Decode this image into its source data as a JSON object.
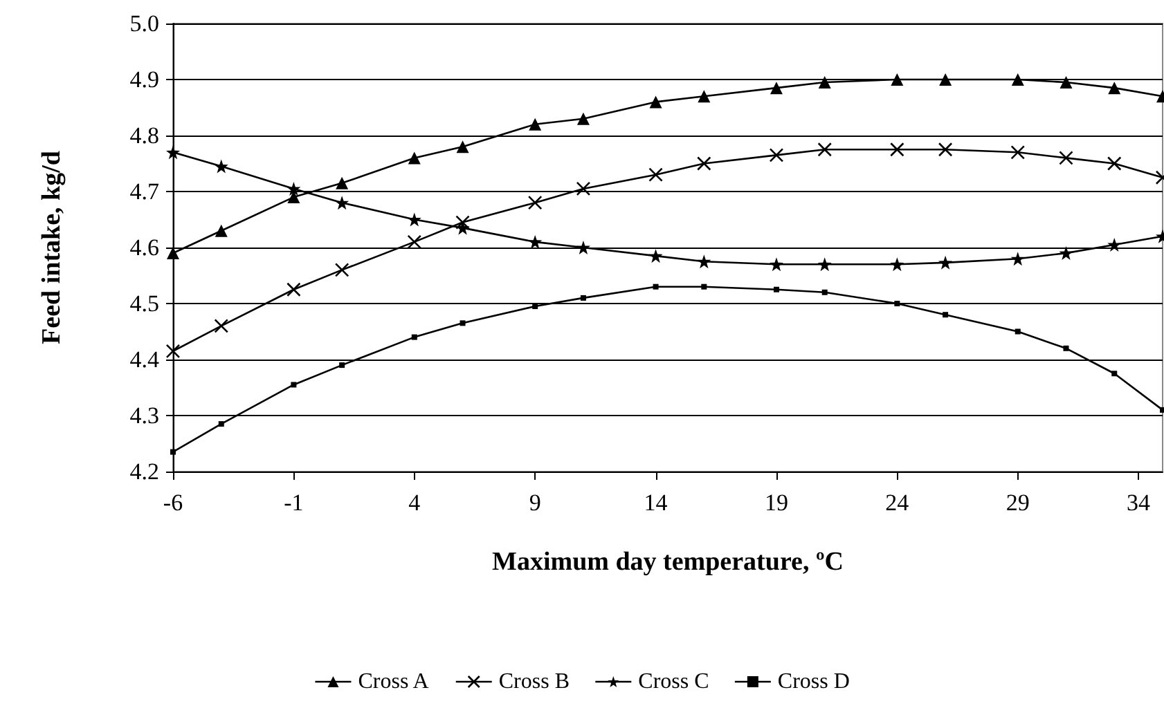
{
  "chart_data": {
    "type": "line",
    "xlabel": "Maximum day temperature, ºC",
    "ylabel": "Feed intake, kg/d",
    "x": [
      -6,
      -4,
      -1,
      1,
      4,
      6,
      9,
      11,
      14,
      16,
      19,
      21,
      24,
      26,
      29,
      31,
      33,
      35
    ],
    "series": [
      {
        "name": "Cross A",
        "color": "#000000",
        "marker": "triangle",
        "values": [
          4.59,
          4.63,
          4.69,
          4.715,
          4.76,
          4.78,
          4.82,
          4.83,
          4.86,
          4.87,
          4.885,
          4.895,
          4.9,
          4.9,
          4.9,
          4.895,
          4.885,
          4.87
        ]
      },
      {
        "name": "Cross B",
        "color": "#000000",
        "marker": "cross",
        "values": [
          4.415,
          4.46,
          4.525,
          4.56,
          4.61,
          4.645,
          4.68,
          4.705,
          4.73,
          4.75,
          4.765,
          4.775,
          4.775,
          4.775,
          4.77,
          4.76,
          4.75,
          4.725
        ]
      },
      {
        "name": "Cross C",
        "color": "#000000",
        "marker": "star",
        "values": [
          4.77,
          4.745,
          4.705,
          4.68,
          4.65,
          4.635,
          4.61,
          4.6,
          4.585,
          4.575,
          4.57,
          4.57,
          4.57,
          4.573,
          4.58,
          4.59,
          4.605,
          4.62
        ]
      },
      {
        "name": "Cross D",
        "color": "#000000",
        "marker": "square",
        "values": [
          4.235,
          4.285,
          4.355,
          4.39,
          4.44,
          4.465,
          4.495,
          4.51,
          4.53,
          4.53,
          4.525,
          4.52,
          4.5,
          4.48,
          4.45,
          4.42,
          4.375,
          4.31
        ]
      }
    ],
    "xlim": [
      -6,
      35
    ],
    "xticks": [
      -6,
      -1,
      4,
      9,
      14,
      19,
      24,
      29,
      34
    ],
    "ylim": [
      4.2,
      5.0
    ],
    "yticks": [
      {
        "value": 4.2,
        "label": "4.2"
      },
      {
        "value": 4.3,
        "label": "4.3"
      },
      {
        "value": 4.4,
        "label": "4.4"
      },
      {
        "value": 4.5,
        "label": "4.5"
      },
      {
        "value": 4.6,
        "label": "4.6"
      },
      {
        "value": 4.7,
        "label": "4.7"
      },
      {
        "value": 4.8,
        "label": "4.8"
      },
      {
        "value": 4.9,
        "label": "4.9"
      },
      {
        "value": 5.0,
        "label": "5.0"
      }
    ],
    "grid": "y",
    "legend": "bottom",
    "line_style": "solid"
  }
}
